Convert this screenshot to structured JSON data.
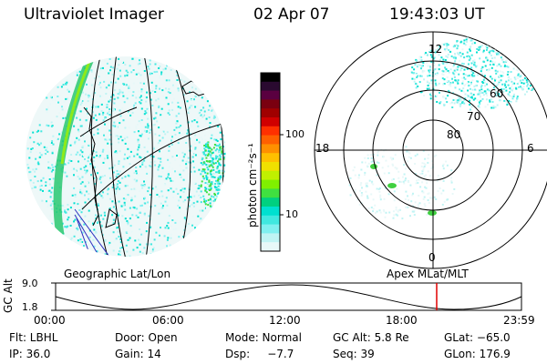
{
  "header": {
    "instrument": "Ultraviolet Imager",
    "date": "02 Apr 07",
    "time": "19:43:03 UT"
  },
  "left_panel": {
    "caption": "Geographic Lat/Lon"
  },
  "right_panel": {
    "caption": "Apex MLat/MLT",
    "mlt_labels": [
      "12",
      "18",
      "6",
      "0"
    ],
    "lat_labels": [
      "60",
      "70",
      "80"
    ]
  },
  "colorbar": {
    "unit_label": "photon cm⁻²s⁻¹",
    "tick_labels": [
      "100",
      "10"
    ],
    "colors": [
      "#000000",
      "#2a0a30",
      "#5a0040",
      "#7a0010",
      "#a00000",
      "#d00000",
      "#ff3000",
      "#ff6000",
      "#ff9000",
      "#ffc000",
      "#f0e000",
      "#c0f000",
      "#80f000",
      "#40e040",
      "#00d080",
      "#00e0d0",
      "#40e8e0",
      "#80f0f0",
      "#c0f4f4",
      "#e8f8f8"
    ]
  },
  "altitude_plot": {
    "ylabel": "GC Alt",
    "y_ticks": [
      "9.0",
      "1.8"
    ],
    "x_ticks": [
      "00:00",
      "06:00",
      "12:00",
      "18:00",
      "23:59"
    ],
    "current_time_fraction": 0.818
  },
  "status": {
    "row1": [
      "Flt: LBHL",
      "Door: Open",
      "Mode: Normal",
      "GC Alt: 5.8 Re",
      "GLat: −65.0"
    ],
    "row2": [
      "IP: 36.0",
      "Gain: 14",
      "Dsp:     −7.7",
      "Seq: 39",
      "GLon: 176.9"
    ]
  }
}
